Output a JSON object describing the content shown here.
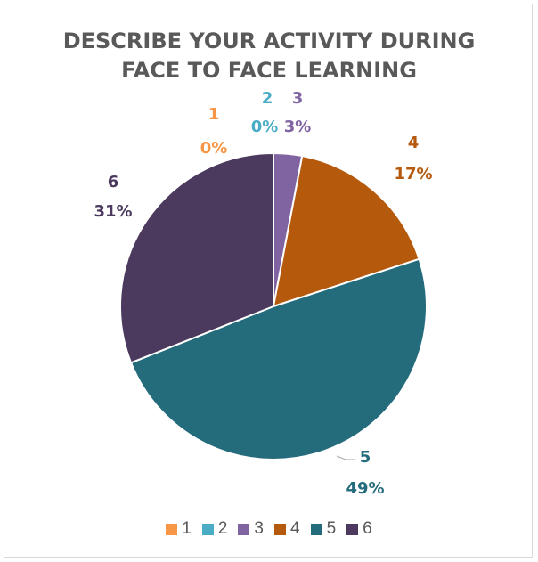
{
  "chart_data": {
    "type": "pie",
    "title_lines": [
      "DESCRIBE YOUR ACTIVITY DURING",
      "FACE TO FACE LEARNING"
    ],
    "categories": [
      "1",
      "2",
      "3",
      "4",
      "5",
      "6"
    ],
    "values": [
      0,
      0,
      3,
      17,
      49,
      31
    ],
    "value_labels": [
      "0%",
      "0%",
      "3%",
      "17%",
      "49%",
      "31%"
    ],
    "colors": [
      "#f79646",
      "#4bacc6",
      "#8064a2",
      "#b55a0d",
      "#246b7c",
      "#4b3a5e"
    ],
    "label_colors": [
      "#f79646",
      "#4bacc6",
      "#8064a2",
      "#b55a0d",
      "#246b7c",
      "#4b3a5e"
    ],
    "legend_position": "bottom"
  }
}
